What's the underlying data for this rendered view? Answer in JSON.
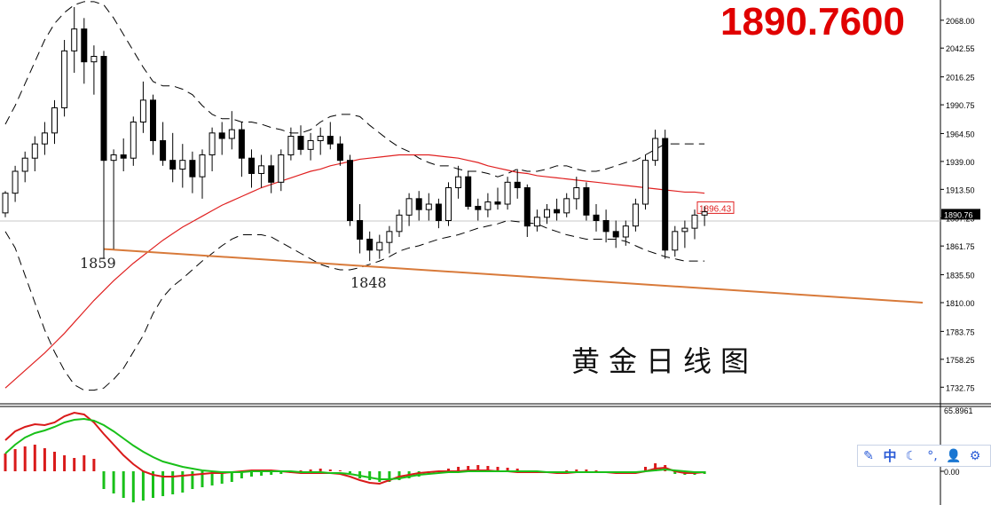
{
  "header": {
    "price_big": "1890.7600"
  },
  "title_text": "黄金日线图",
  "annotations": {
    "low_1": "1859",
    "low_2": "1848",
    "ma_tag": "1896.43"
  },
  "colors": {
    "bull_fill": "#ffffff",
    "bear_fill": "#000000",
    "candle_line": "#000000",
    "ma_red": "#e02020",
    "trend_orange": "#d87a3a",
    "price_tag": "#000000",
    "macd_red": "#d91a1a",
    "macd_green": "#19c019"
  },
  "chart_data": [
    {
      "type": "candlestick",
      "ylim": [
        1720,
        2080
      ],
      "y_ticks": [
        "2068.00",
        "2042.55",
        "2016.25",
        "1990.75",
        "1964.50",
        "1939.00",
        "1913.50",
        "1887.25",
        "1861.75",
        "1835.50",
        "1810.00",
        "1783.75",
        "1758.25",
        "1732.75"
      ],
      "current_price": "1890.76",
      "series": [
        {
          "name": "bars",
          "ohlc": [
            [
              1892,
              1912,
              1888,
              1910
            ],
            [
              1910,
              1935,
              1902,
              1930
            ],
            [
              1930,
              1948,
              1920,
              1942
            ],
            [
              1942,
              1962,
              1930,
              1955
            ],
            [
              1955,
              1975,
              1945,
              1965
            ],
            [
              1965,
              1995,
              1955,
              1988
            ],
            [
              1988,
              2050,
              1980,
              2040
            ],
            [
              2040,
              2080,
              2020,
              2060
            ],
            [
              2060,
              2070,
              2010,
              2030
            ],
            [
              2030,
              2045,
              2000,
              2035
            ],
            [
              2035,
              2040,
              1850,
              1940
            ],
            [
              1940,
              1950,
              1859,
              1945
            ],
            [
              1945,
              1960,
              1930,
              1942
            ],
            [
              1942,
              1980,
              1935,
              1975
            ],
            [
              1975,
              2012,
              1965,
              1995
            ],
            [
              1995,
              2000,
              1945,
              1958
            ],
            [
              1958,
              1975,
              1935,
              1940
            ],
            [
              1940,
              1965,
              1920,
              1932
            ],
            [
              1932,
              1955,
              1915,
              1940
            ],
            [
              1940,
              1948,
              1910,
              1925
            ],
            [
              1925,
              1950,
              1905,
              1945
            ],
            [
              1945,
              1970,
              1930,
              1965
            ],
            [
              1965,
              1975,
              1945,
              1960
            ],
            [
              1960,
              1985,
              1950,
              1968
            ],
            [
              1968,
              1975,
              1925,
              1942
            ],
            [
              1942,
              1950,
              1915,
              1928
            ],
            [
              1928,
              1945,
              1915,
              1935
            ],
            [
              1935,
              1945,
              1910,
              1920
            ],
            [
              1920,
              1950,
              1912,
              1945
            ],
            [
              1945,
              1970,
              1940,
              1962
            ],
            [
              1962,
              1972,
              1945,
              1950
            ],
            [
              1950,
              1965,
              1940,
              1958
            ],
            [
              1958,
              1970,
              1945,
              1962
            ],
            [
              1962,
              1975,
              1950,
              1955
            ],
            [
              1955,
              1962,
              1935,
              1940
            ],
            [
              1940,
              1945,
              1880,
              1885
            ],
            [
              1885,
              1900,
              1855,
              1868
            ],
            [
              1868,
              1875,
              1848,
              1858
            ],
            [
              1858,
              1872,
              1850,
              1865
            ],
            [
              1865,
              1880,
              1855,
              1875
            ],
            [
              1875,
              1895,
              1870,
              1890
            ],
            [
              1890,
              1910,
              1880,
              1905
            ],
            [
              1905,
              1912,
              1885,
              1895
            ],
            [
              1895,
              1910,
              1885,
              1900
            ],
            [
              1900,
              1905,
              1878,
              1885
            ],
            [
              1885,
              1920,
              1880,
              1915
            ],
            [
              1915,
              1935,
              1905,
              1925
            ],
            [
              1925,
              1930,
              1895,
              1898
            ],
            [
              1898,
              1905,
              1885,
              1895
            ],
            [
              1895,
              1910,
              1888,
              1902
            ],
            [
              1902,
              1915,
              1895,
              1900
            ],
            [
              1900,
              1925,
              1895,
              1920
            ],
            [
              1920,
              1932,
              1905,
              1915
            ],
            [
              1915,
              1918,
              1870,
              1880
            ],
            [
              1880,
              1895,
              1875,
              1888
            ],
            [
              1888,
              1900,
              1882,
              1895
            ],
            [
              1895,
              1905,
              1885,
              1892
            ],
            [
              1892,
              1910,
              1888,
              1905
            ],
            [
              1905,
              1925,
              1895,
              1915
            ],
            [
              1915,
              1920,
              1885,
              1890
            ],
            [
              1890,
              1900,
              1875,
              1885
            ],
            [
              1885,
              1895,
              1865,
              1875
            ],
            [
              1875,
              1885,
              1860,
              1870
            ],
            [
              1870,
              1885,
              1862,
              1880
            ],
            [
              1880,
              1905,
              1875,
              1900
            ],
            [
              1900,
              1945,
              1895,
              1940
            ],
            [
              1940,
              1968,
              1935,
              1960
            ],
            [
              1960,
              1968,
              1850,
              1858
            ],
            [
              1858,
              1880,
              1852,
              1875
            ],
            [
              1875,
              1885,
              1860,
              1878
            ],
            [
              1878,
              1895,
              1868,
              1890
            ],
            [
              1890,
              1898,
              1880,
              1893
            ]
          ]
        },
        {
          "name": "",
          "values": [
            1732,
            1740,
            1748,
            1756,
            1764,
            1773,
            1782,
            1792,
            1802,
            1812,
            1821,
            1830,
            1838,
            1846,
            1853,
            1860,
            1867,
            1873,
            1879,
            1884,
            1889,
            1894,
            1899,
            1903,
            1907,
            1911,
            1915,
            1918,
            1921,
            1924,
            1927,
            1930,
            1932,
            1935,
            1937,
            1939,
            1941,
            1942,
            1943,
            1944,
            1945,
            1945,
            1945,
            1945,
            1944,
            1943,
            1942,
            1940,
            1938,
            1935,
            1933,
            1931,
            1929,
            1928,
            1926,
            1925,
            1924,
            1923,
            1922,
            1921,
            1920,
            1919,
            1918,
            1917,
            1916,
            1915,
            1914,
            1913,
            1912,
            1911,
            1911,
            1910
          ]
        },
        {
          "name": "",
          "values": [
            1973,
            1990,
            2010,
            2030,
            2050,
            2065,
            2075,
            2082,
            2085,
            2085,
            2082,
            2070,
            2055,
            2040,
            2025,
            2012,
            2008,
            2008,
            2005,
            2000,
            1990,
            1982,
            1978,
            1978,
            1975,
            1975,
            1973,
            1970,
            1968,
            1965,
            1965,
            1968,
            1975,
            1980,
            1982,
            1982,
            1980,
            1972,
            1965,
            1958,
            1952,
            1948,
            1942,
            1938,
            1935,
            1935,
            1932,
            1930,
            1930,
            1928,
            1925,
            1928,
            1932,
            1930,
            1930,
            1932,
            1935,
            1935,
            1932,
            1930,
            1930,
            1932,
            1935,
            1938,
            1940,
            1945,
            1950,
            1955,
            1955,
            1955,
            1955,
            1955
          ]
        },
        {
          "name": "",
          "values": [
            1875,
            1860,
            1835,
            1810,
            1785,
            1765,
            1748,
            1735,
            1730,
            1730,
            1732,
            1740,
            1750,
            1765,
            1780,
            1800,
            1815,
            1825,
            1832,
            1840,
            1848,
            1855,
            1862,
            1868,
            1872,
            1872,
            1872,
            1870,
            1865,
            1860,
            1855,
            1850,
            1845,
            1842,
            1840,
            1840,
            1842,
            1845,
            1848,
            1852,
            1857,
            1860,
            1862,
            1865,
            1868,
            1870,
            1872,
            1875,
            1878,
            1880,
            1882,
            1885,
            1884,
            1883,
            1882,
            1878,
            1875,
            1872,
            1870,
            1868,
            1868,
            1868,
            1868,
            1866,
            1862,
            1858,
            1855,
            1852,
            1850,
            1848,
            1848,
            1848
          ]
        },
        {
          "name": "",
          "values": [
            1859,
            1848,
            1810
          ]
        }
      ]
    },
    {
      "type": "macd",
      "y_ticks": [
        "65.8961",
        "0.00"
      ],
      "series": [
        {
          "name": "",
          "values": [
            20,
            25,
            28,
            30,
            26,
            22,
            18,
            15,
            18,
            14,
            -20,
            -25,
            -30,
            -35,
            -33,
            -30,
            -28,
            -26,
            -24,
            -20,
            -18,
            -16,
            -14,
            -12,
            -8,
            -6,
            -5,
            -4,
            -3,
            -2,
            1,
            2,
            3,
            2,
            1,
            -2,
            -8,
            -10,
            -12,
            -12,
            -10,
            -8,
            -6,
            -3,
            -1,
            3,
            5,
            6,
            7,
            6,
            5,
            4,
            3,
            1,
            -1,
            -1,
            0,
            1,
            2,
            2,
            1,
            0,
            -2,
            -3,
            -1,
            5,
            9,
            7,
            -3,
            -4,
            -4,
            -3
          ]
        },
        {
          "name": "",
          "values": [
            35,
            45,
            50,
            53,
            52,
            55,
            62,
            66,
            64,
            55,
            42,
            30,
            18,
            8,
            0,
            -4,
            -6,
            -6,
            -5,
            -4,
            -3,
            -2,
            -2,
            -1,
            0,
            1,
            1,
            1,
            0,
            -1,
            -2,
            -2,
            -2,
            -2,
            -3,
            -6,
            -10,
            -13,
            -14,
            -10,
            -6,
            -4,
            -2,
            -1,
            0,
            0,
            0,
            1,
            1,
            1,
            0,
            0,
            -1,
            -1,
            -1,
            -1,
            -2,
            -2,
            -1,
            -1,
            -1,
            -1,
            -2,
            -2,
            -2,
            0,
            3,
            4,
            0,
            -2,
            -2,
            -1
          ]
        },
        {
          "name": "",
          "values": [
            20,
            30,
            38,
            43,
            46,
            50,
            55,
            58,
            59,
            57,
            52,
            45,
            37,
            29,
            22,
            16,
            11,
            8,
            5,
            3,
            1,
            0,
            -1,
            -1,
            -1,
            0,
            0,
            0,
            0,
            0,
            -1,
            -1,
            -1,
            -2,
            -2,
            -3,
            -5,
            -7,
            -9,
            -9,
            -8,
            -6,
            -4,
            -3,
            -2,
            -1,
            -1,
            0,
            0,
            0,
            0,
            0,
            0,
            0,
            0,
            -1,
            -1,
            -1,
            -1,
            -1,
            -1,
            -1,
            -1,
            -1,
            -1,
            0,
            1,
            2,
            1,
            0,
            -1,
            -1
          ]
        }
      ]
    }
  ],
  "toolbar": {
    "items": [
      {
        "name": "edit-icon",
        "glyph": "✎"
      },
      {
        "name": "lang-zh-button",
        "glyph": "中"
      },
      {
        "name": "moon-icon",
        "glyph": "☾"
      },
      {
        "name": "punctuation-icon",
        "glyph": "°,"
      },
      {
        "name": "user-icon",
        "glyph": "👤"
      },
      {
        "name": "settings-gear-icon",
        "glyph": "⚙"
      }
    ]
  }
}
